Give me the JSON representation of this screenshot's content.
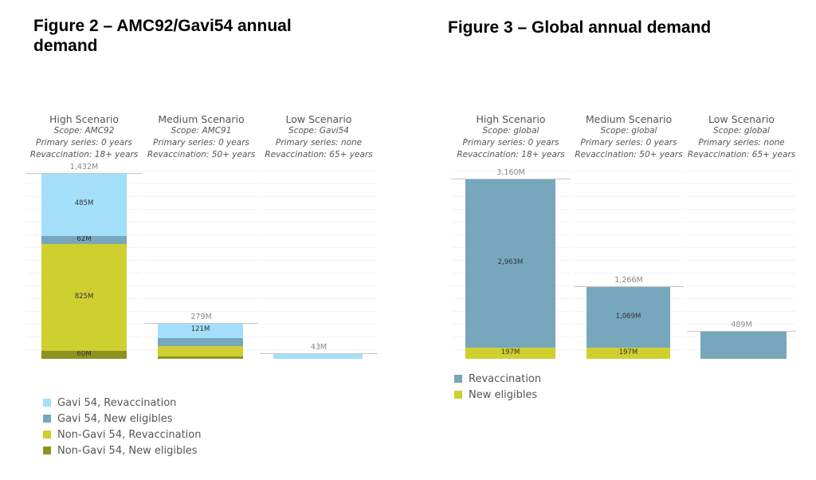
{
  "chart_data": [
    {
      "type": "bar",
      "stacked": true,
      "title": "Figure 2 – AMC92/Gavi54 annual demand",
      "ylim": [
        0,
        1500
      ],
      "grid": true,
      "legend_position": "bottom-left",
      "series": [
        {
          "name": "Non-Gavi 54, New eligibles",
          "color": "#8f9221"
        },
        {
          "name": "Non-Gavi 54,  Revaccination",
          "color": "#cfcf30"
        },
        {
          "name": "Gavi 54, New eligibles",
          "color": "#76a7bd"
        },
        {
          "name": "Gavi 54, Revaccination",
          "color": "#a3dff9"
        }
      ],
      "legend_order": [
        3,
        2,
        1,
        0
      ],
      "panels": [
        {
          "title": "High Scenario",
          "scope": "Scope: AMC92",
          "primary": "Primary series: 0 years",
          "revacc": "Revaccination: 18+ years",
          "total_label": "1,432M",
          "total": 1432,
          "values": [
            60,
            825,
            62,
            485
          ],
          "labels": [
            "60M",
            "825M",
            "62M",
            "485M"
          ]
        },
        {
          "title": "Medium Scenario",
          "scope": "Scope: AMC91",
          "primary": "Primary series: 0 years",
          "revacc": "Revaccination: 50+ years",
          "total_label": "279M",
          "total": 279,
          "values": [
            20,
            78,
            60,
            121
          ],
          "labels": [
            "",
            "",
            "",
            "121M"
          ]
        },
        {
          "title": "Low Scenario",
          "scope": "Scope: Gavi54",
          "primary": "Primary series: none",
          "revacc": "Revaccination: 65+ years",
          "total_label": "43M",
          "total": 43,
          "values": [
            0,
            0,
            0,
            43
          ],
          "labels": [
            "",
            "",
            "",
            ""
          ]
        }
      ]
    },
    {
      "type": "bar",
      "stacked": true,
      "title": "Figure 3 – Global annual demand",
      "ylim": [
        0,
        3200
      ],
      "grid": true,
      "legend_position": "bottom-left",
      "series": [
        {
          "name": "New eligibles",
          "color": "#cfcf30"
        },
        {
          "name": "Revaccination",
          "color": "#76a7bd"
        }
      ],
      "legend_order": [
        1,
        0
      ],
      "panels": [
        {
          "title": "High Scenario",
          "scope": "Scope: global",
          "primary": "Primary series: 0 years",
          "revacc": "Revaccination: 18+ years",
          "total_label": "3,160M",
          "total": 3160,
          "values": [
            197,
            2963
          ],
          "labels": [
            "197M",
            "2,963M"
          ]
        },
        {
          "title": "Medium Scenario",
          "scope": "Scope: global",
          "primary": "Primary series: 0 years",
          "revacc": "Revaccination: 50+ years",
          "total_label": "1,266M",
          "total": 1266,
          "values": [
            197,
            1069
          ],
          "labels": [
            "197M",
            "1,069M"
          ]
        },
        {
          "title": "Low Scenario",
          "scope": "Scope: global",
          "primary": "Primary series: none",
          "revacc": "Revaccination: 65+ years",
          "total_label": "489M",
          "total": 489,
          "values": [
            0,
            489
          ],
          "labels": [
            "",
            ""
          ]
        }
      ]
    }
  ]
}
